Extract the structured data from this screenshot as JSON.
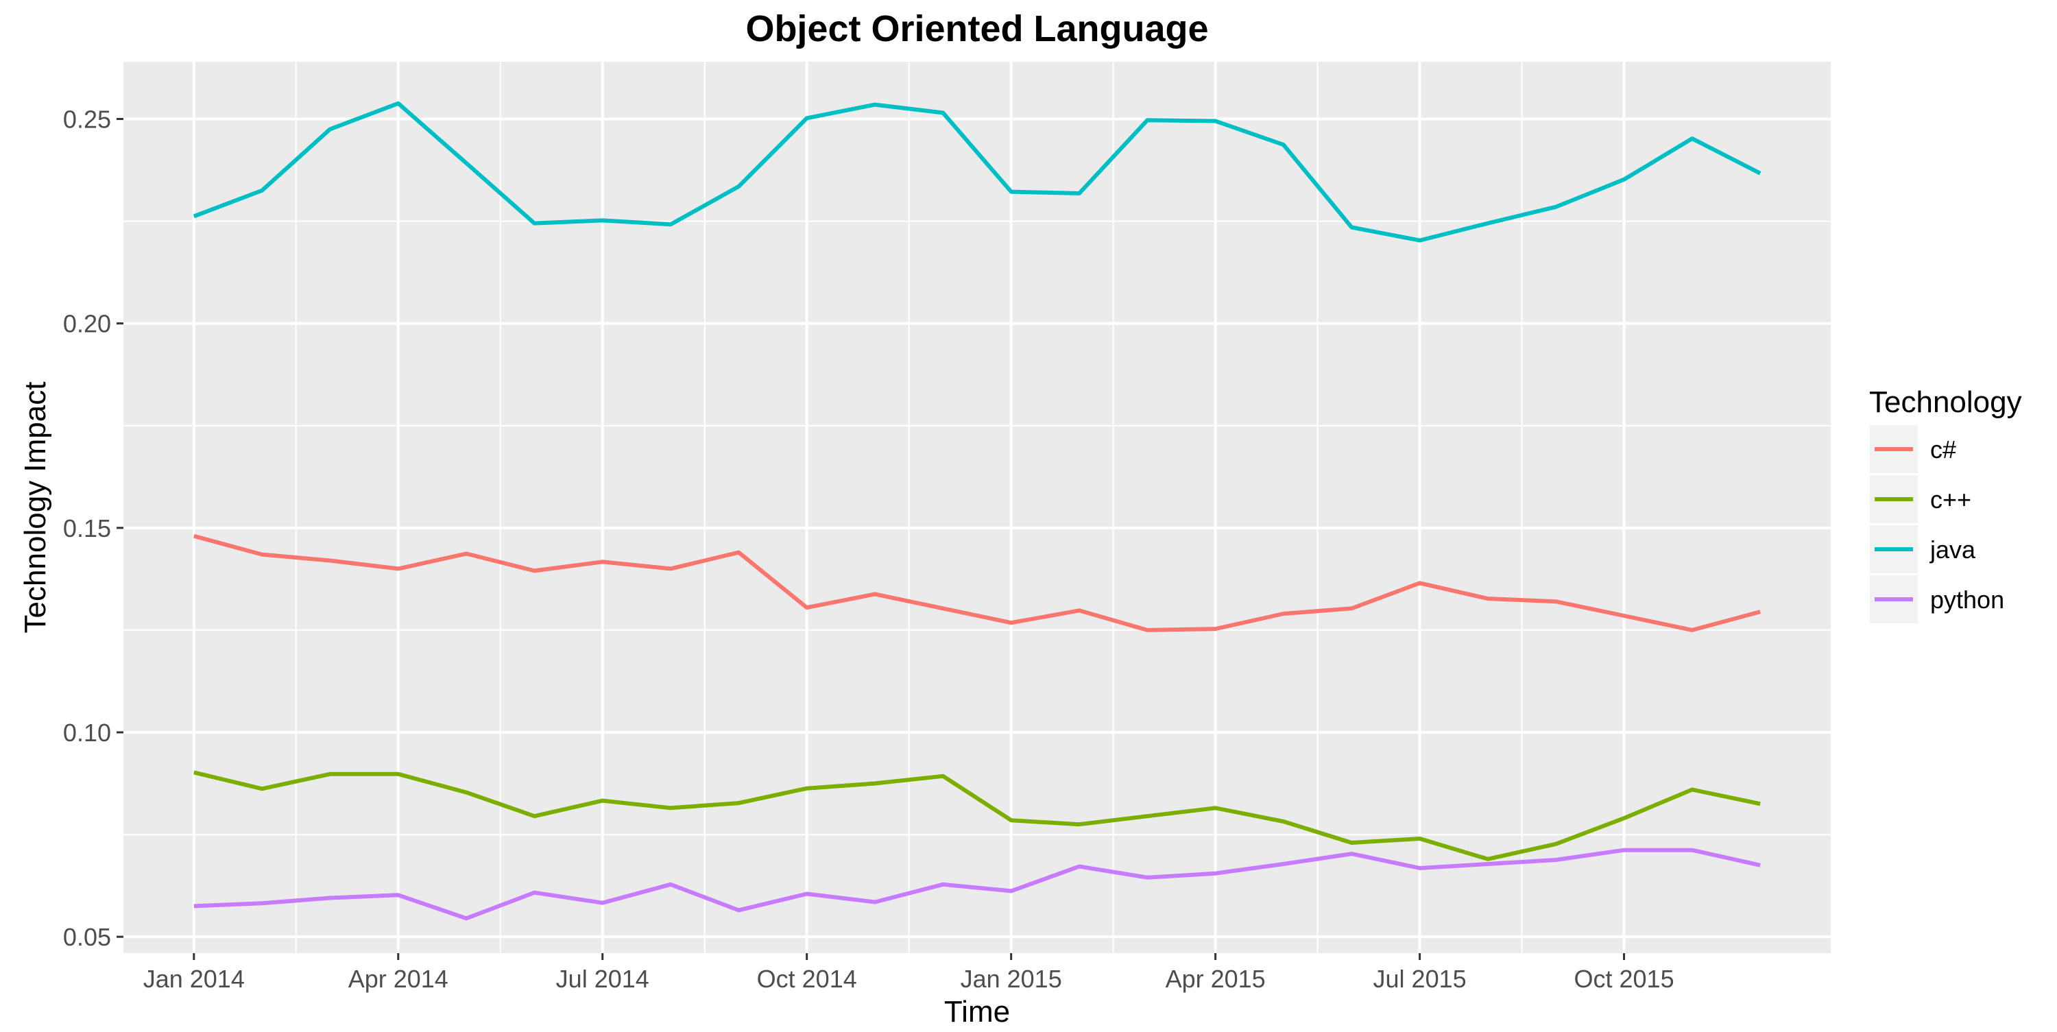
{
  "chart_data": {
    "type": "line",
    "title": "Object Oriented Language",
    "xlabel": "Time",
    "ylabel": "Technology Impact",
    "legend_title": "Technology",
    "legend_position": "right",
    "grid": true,
    "background": "#EBEBEB",
    "x": [
      "2014-01",
      "2014-02",
      "2014-03",
      "2014-04",
      "2014-05",
      "2014-06",
      "2014-07",
      "2014-08",
      "2014-09",
      "2014-10",
      "2014-11",
      "2014-12",
      "2015-01",
      "2015-02",
      "2015-03",
      "2015-04",
      "2015-05",
      "2015-06",
      "2015-07",
      "2015-08",
      "2015-09",
      "2015-10",
      "2015-11",
      "2015-12"
    ],
    "x_ticks": [
      {
        "x": "2014-01",
        "label": "Jan 2014"
      },
      {
        "x": "2014-04",
        "label": "Apr 2014"
      },
      {
        "x": "2014-07",
        "label": "Jul 2014"
      },
      {
        "x": "2014-10",
        "label": "Oct 2014"
      },
      {
        "x": "2015-01",
        "label": "Jan 2015"
      },
      {
        "x": "2015-04",
        "label": "Apr 2015"
      },
      {
        "x": "2015-07",
        "label": "Jul 2015"
      },
      {
        "x": "2015-10",
        "label": "Oct 2015"
      }
    ],
    "ylim": [
      0.046,
      0.264
    ],
    "y_ticks": [
      {
        "value": 0.05,
        "label": "0.05"
      },
      {
        "value": 0.1,
        "label": "0.10"
      },
      {
        "value": 0.15,
        "label": "0.15"
      },
      {
        "value": 0.2,
        "label": "0.20"
      },
      {
        "value": 0.25,
        "label": "0.25"
      }
    ],
    "series": [
      {
        "name": "c#",
        "color": "#F8766D",
        "values": [
          0.148,
          0.1435,
          0.142,
          0.14,
          0.1437,
          0.1395,
          0.1417,
          0.14,
          0.144,
          0.1305,
          0.1338,
          0.1303,
          0.1268,
          0.1298,
          0.125,
          0.1253,
          0.129,
          0.1303,
          0.1365,
          0.1327,
          0.132,
          0.1285,
          0.125,
          0.1295
        ]
      },
      {
        "name": "c++",
        "color": "#7CAE00",
        "values": [
          0.0902,
          0.0862,
          0.0898,
          0.0898,
          0.0853,
          0.0795,
          0.0833,
          0.0815,
          0.0827,
          0.0863,
          0.0875,
          0.0893,
          0.0785,
          0.0775,
          0.0795,
          0.0815,
          0.0782,
          0.073,
          0.074,
          0.069,
          0.0727,
          0.079,
          0.086,
          0.0825
        ]
      },
      {
        "name": "java",
        "color": "#00BFC4",
        "values": [
          0.2262,
          0.2325,
          0.2475,
          0.2538,
          0.2392,
          0.2245,
          0.2252,
          0.2242,
          0.2335,
          0.2502,
          0.2535,
          0.2515,
          0.2322,
          0.2318,
          0.2497,
          0.2495,
          0.2437,
          0.2235,
          0.2203,
          0.2245,
          0.2285,
          0.2352,
          0.2452,
          0.2367
        ]
      },
      {
        "name": "python",
        "color": "#C77CFF",
        "values": [
          0.0575,
          0.0582,
          0.0595,
          0.0602,
          0.0545,
          0.0608,
          0.0583,
          0.0628,
          0.0565,
          0.0605,
          0.0585,
          0.0628,
          0.0612,
          0.0672,
          0.0645,
          0.0655,
          0.0678,
          0.0703,
          0.0668,
          0.0678,
          0.0688,
          0.0712,
          0.0712,
          0.0675
        ]
      }
    ]
  }
}
